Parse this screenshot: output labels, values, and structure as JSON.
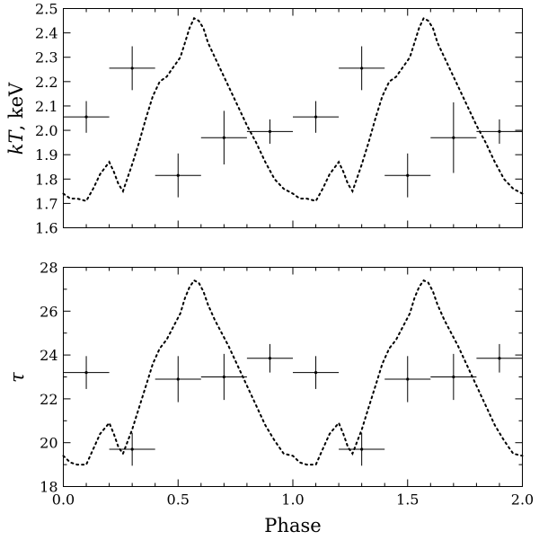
{
  "chart_data": [
    {
      "type": "scatter",
      "ylabel": "kT, keV",
      "ylabel_italic_part": "kT",
      "ylabel_rest": ", keV",
      "xlim": [
        0.0,
        2.0
      ],
      "ylim": [
        1.6,
        2.5
      ],
      "yticks": [
        "1.6",
        "1.7",
        "1.8",
        "1.9",
        "2.0",
        "2.1",
        "2.2",
        "2.3",
        "2.4",
        "2.5"
      ],
      "grid": false,
      "series": [
        {
          "points": [
            {
              "x": 0.1,
              "y": 2.055,
              "xerr": 0.1,
              "yerr": 0.065
            },
            {
              "x": 0.3,
              "y": 2.255,
              "xerr": 0.1,
              "yerr": 0.09
            },
            {
              "x": 0.5,
              "y": 1.815,
              "xerr": 0.1,
              "yerr": 0.09
            },
            {
              "x": 0.7,
              "y": 1.97,
              "xerr": 0.1,
              "yerr": 0.11
            },
            {
              "x": 0.9,
              "y": 1.995,
              "xerr": 0.1,
              "yerr": 0.05
            },
            {
              "x": 1.1,
              "y": 2.055,
              "xerr": 0.1,
              "yerr": 0.065
            },
            {
              "x": 1.3,
              "y": 2.255,
              "xerr": 0.1,
              "yerr": 0.09
            },
            {
              "x": 1.5,
              "y": 1.815,
              "xerr": 0.1,
              "yerr": 0.09
            },
            {
              "x": 1.7,
              "y": 1.97,
              "xerr": 0.1,
              "yerr": 0.145
            },
            {
              "x": 1.9,
              "y": 1.995,
              "xerr": 0.1,
              "yerr": 0.05
            }
          ]
        },
        {
          "style": "dotted",
          "x": [
            0.0,
            0.03,
            0.06,
            0.1,
            0.13,
            0.16,
            0.2,
            0.22,
            0.24,
            0.26,
            0.3,
            0.33,
            0.36,
            0.39,
            0.42,
            0.45,
            0.48,
            0.51,
            0.53,
            0.55,
            0.57,
            0.59,
            0.61,
            0.63,
            0.66,
            0.69,
            0.72,
            0.76,
            0.8,
            0.84,
            0.88,
            0.92,
            0.96,
            1.0,
            1.03,
            1.06,
            1.1,
            1.13,
            1.16,
            1.2,
            1.22,
            1.24,
            1.26,
            1.3,
            1.33,
            1.36,
            1.39,
            1.42,
            1.45,
            1.48,
            1.51,
            1.53,
            1.55,
            1.57,
            1.59,
            1.61,
            1.63,
            1.66,
            1.69,
            1.72,
            1.76,
            1.8,
            1.84,
            1.88,
            1.92,
            1.96,
            2.0
          ],
          "y": [
            1.74,
            1.72,
            1.72,
            1.71,
            1.76,
            1.82,
            1.87,
            1.83,
            1.78,
            1.75,
            1.86,
            1.95,
            2.05,
            2.14,
            2.2,
            2.22,
            2.26,
            2.3,
            2.36,
            2.42,
            2.46,
            2.45,
            2.42,
            2.36,
            2.3,
            2.24,
            2.18,
            2.1,
            2.02,
            1.95,
            1.87,
            1.8,
            1.76,
            1.74,
            1.72,
            1.72,
            1.71,
            1.76,
            1.82,
            1.87,
            1.83,
            1.78,
            1.75,
            1.86,
            1.95,
            2.05,
            2.14,
            2.2,
            2.22,
            2.26,
            2.3,
            2.36,
            2.42,
            2.46,
            2.45,
            2.42,
            2.36,
            2.3,
            2.24,
            2.18,
            2.1,
            2.02,
            1.95,
            1.87,
            1.8,
            1.76,
            1.74
          ]
        }
      ]
    },
    {
      "type": "scatter",
      "ylabel": "τ",
      "xlabel": "Phase",
      "xlim": [
        0.0,
        2.0
      ],
      "ylim": [
        18,
        28
      ],
      "xticks": [
        "0.0",
        "0.5",
        "1.0",
        "1.5",
        "2.0"
      ],
      "yticks": [
        "18",
        "20",
        "22",
        "24",
        "26",
        "28"
      ],
      "grid": false,
      "series": [
        {
          "points": [
            {
              "x": 0.1,
              "y": 23.2,
              "xerr": 0.1,
              "yerr": 0.75
            },
            {
              "x": 0.3,
              "y": 19.7,
              "xerr": 0.1,
              "yerr": 0.75
            },
            {
              "x": 0.5,
              "y": 22.9,
              "xerr": 0.1,
              "yerr": 1.05
            },
            {
              "x": 0.7,
              "y": 23.0,
              "xerr": 0.1,
              "yerr": 1.05
            },
            {
              "x": 0.9,
              "y": 23.85,
              "xerr": 0.1,
              "yerr": 0.65
            },
            {
              "x": 1.1,
              "y": 23.2,
              "xerr": 0.1,
              "yerr": 0.75
            },
            {
              "x": 1.3,
              "y": 19.7,
              "xerr": 0.1,
              "yerr": 0.75
            },
            {
              "x": 1.5,
              "y": 22.9,
              "xerr": 0.1,
              "yerr": 1.05
            },
            {
              "x": 1.7,
              "y": 23.0,
              "xerr": 0.1,
              "yerr": 1.05
            },
            {
              "x": 1.9,
              "y": 23.85,
              "xerr": 0.1,
              "yerr": 0.65
            }
          ]
        },
        {
          "style": "dotted",
          "x": [
            0.0,
            0.03,
            0.06,
            0.1,
            0.13,
            0.16,
            0.2,
            0.22,
            0.24,
            0.26,
            0.3,
            0.33,
            0.36,
            0.39,
            0.42,
            0.45,
            0.48,
            0.51,
            0.53,
            0.55,
            0.57,
            0.59,
            0.61,
            0.63,
            0.66,
            0.69,
            0.72,
            0.76,
            0.8,
            0.84,
            0.88,
            0.92,
            0.96,
            1.0,
            1.03,
            1.06,
            1.1,
            1.13,
            1.16,
            1.2,
            1.22,
            1.24,
            1.26,
            1.3,
            1.33,
            1.36,
            1.39,
            1.42,
            1.45,
            1.48,
            1.51,
            1.53,
            1.55,
            1.57,
            1.59,
            1.61,
            1.63,
            1.66,
            1.69,
            1.72,
            1.76,
            1.8,
            1.84,
            1.88,
            1.92,
            1.96,
            2.0
          ],
          "y": [
            19.4,
            19.1,
            19.0,
            19.0,
            19.7,
            20.4,
            20.9,
            20.4,
            19.8,
            19.5,
            20.6,
            21.6,
            22.6,
            23.6,
            24.3,
            24.7,
            25.3,
            25.9,
            26.6,
            27.1,
            27.4,
            27.3,
            26.9,
            26.3,
            25.6,
            25.0,
            24.4,
            23.5,
            22.6,
            21.7,
            20.8,
            20.1,
            19.5,
            19.4,
            19.1,
            19.0,
            19.0,
            19.7,
            20.4,
            20.9,
            20.4,
            19.8,
            19.5,
            20.6,
            21.6,
            22.6,
            23.6,
            24.3,
            24.7,
            25.3,
            25.9,
            26.6,
            27.1,
            27.4,
            27.3,
            26.9,
            26.3,
            25.6,
            25.0,
            24.4,
            23.5,
            22.6,
            21.7,
            20.8,
            20.1,
            19.5,
            19.4
          ]
        }
      ]
    }
  ]
}
